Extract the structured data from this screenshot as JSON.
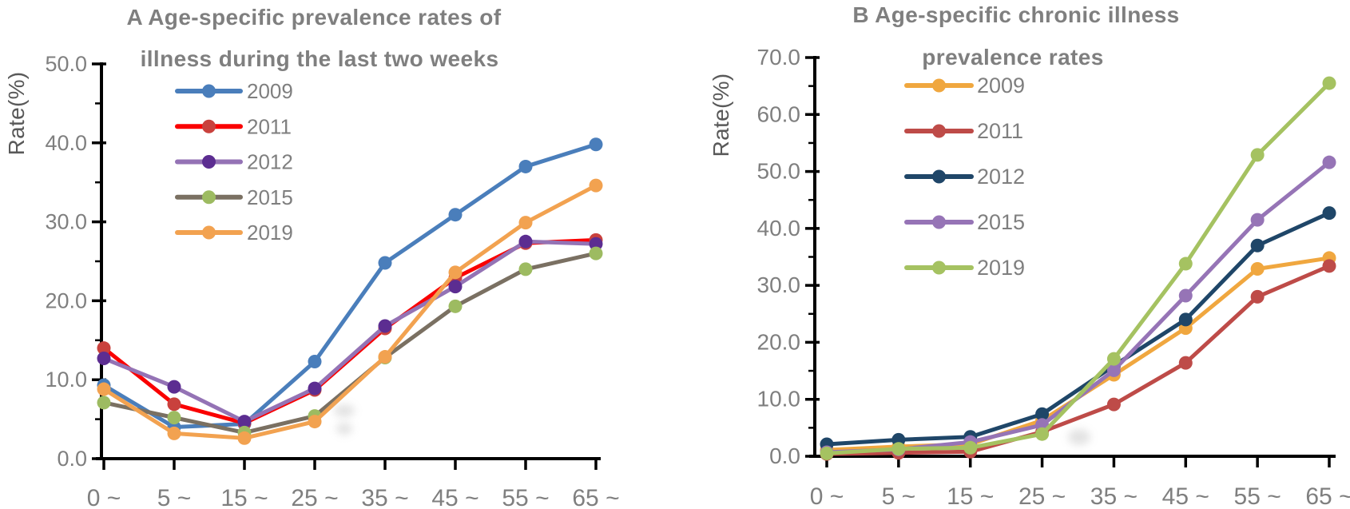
{
  "figure": {
    "background_color": "#ffffff",
    "axis_color": "#000000",
    "tick_label_color": "#7f7f7f",
    "title_color": "#7f7f7f",
    "axis_title_color": "#595959"
  },
  "chart_data": [
    {
      "id": "A",
      "type": "line",
      "title": [
        "A  Age-specific prevalence rates of",
        "illness during the last two weeks"
      ],
      "ylabel": "Rate(%)",
      "ylim": [
        0,
        50
      ],
      "y_major_step": 10,
      "y_minor_step": 5,
      "y_tick_labels": [
        "0.0",
        "10.0",
        "20.0",
        "30.0",
        "40.0",
        "50.0"
      ],
      "categories": [
        "0 ~",
        "5 ~",
        "15 ~",
        "25 ~",
        "35 ~",
        "45 ~",
        "55 ~",
        "65 ~"
      ],
      "grid": "off",
      "legend_position": "inside-top-left",
      "legend_labels": [
        "2009",
        "2011",
        "2012",
        "2015",
        "2019"
      ],
      "series": [
        {
          "name": "2009",
          "line_color": "#4A7EBB",
          "marker_color": "#4A7EBB",
          "values": [
            9.3,
            4.0,
            4.4,
            12.3,
            24.8,
            30.9,
            37.0,
            39.8
          ]
        },
        {
          "name": "2011",
          "line_color": "#FA0000",
          "marker_color": "#C9413D",
          "values": [
            14.0,
            6.9,
            4.5,
            8.7,
            16.5,
            22.9,
            27.3,
            27.7
          ]
        },
        {
          "name": "2012",
          "line_color": "#9473B5",
          "marker_color": "#5C2D91",
          "values": [
            12.7,
            9.1,
            4.7,
            8.9,
            16.8,
            21.8,
            27.5,
            27.2
          ]
        },
        {
          "name": "2015",
          "line_color": "#7A7062",
          "marker_color": "#9DBB61",
          "values": [
            7.1,
            5.2,
            3.3,
            5.4,
            12.8,
            19.3,
            24.0,
            26.0
          ]
        },
        {
          "name": "2019",
          "line_color": "#F2A250",
          "marker_color": "#F2A250",
          "values": [
            8.8,
            3.2,
            2.6,
            4.7,
            12.9,
            23.6,
            29.9,
            34.6
          ]
        }
      ]
    },
    {
      "id": "B",
      "type": "line",
      "title": [
        "B  Age-specific chronic illness",
        "prevalence rates"
      ],
      "ylabel": "Rate(%)",
      "ylim": [
        0,
        70
      ],
      "y_major_step": 10,
      "y_minor_step": 5,
      "y_tick_labels": [
        "0.0",
        "10.0",
        "20.0",
        "30.0",
        "40.0",
        "50.0",
        "60.0",
        "70.0"
      ],
      "categories": [
        "0 ~",
        "5 ~",
        "15 ~",
        "25 ~",
        "35 ~",
        "45 ~",
        "55 ~",
        "65 ~"
      ],
      "grid": "off",
      "legend_position": "inside-top-left",
      "legend_labels": [
        "2009",
        "2011",
        "2012",
        "2015",
        "2019"
      ],
      "series": [
        {
          "name": "2009",
          "line_color": "#F0A73F",
          "marker_color": "#F0A73F",
          "values": [
            1.1,
            1.7,
            2.1,
            6.3,
            14.3,
            22.5,
            32.9,
            34.8
          ]
        },
        {
          "name": "2011",
          "line_color": "#BE4B48",
          "marker_color": "#BE4B48",
          "values": [
            0.4,
            0.6,
            0.8,
            4.3,
            9.1,
            16.4,
            28.0,
            33.4
          ]
        },
        {
          "name": "2012",
          "line_color": "#1F4668",
          "marker_color": "#1F4668",
          "values": [
            2.1,
            2.9,
            3.4,
            7.4,
            15.9,
            24.0,
            37.0,
            42.7
          ]
        },
        {
          "name": "2015",
          "line_color": "#9674B6",
          "marker_color": "#9674B6",
          "values": [
            0.7,
            1.2,
            2.5,
            5.5,
            15.1,
            28.2,
            41.5,
            51.6
          ]
        },
        {
          "name": "2019",
          "line_color": "#A5C261",
          "marker_color": "#A5C261",
          "values": [
            0.5,
            1.3,
            1.5,
            3.9,
            17.1,
            33.8,
            52.9,
            65.5
          ]
        }
      ]
    }
  ]
}
